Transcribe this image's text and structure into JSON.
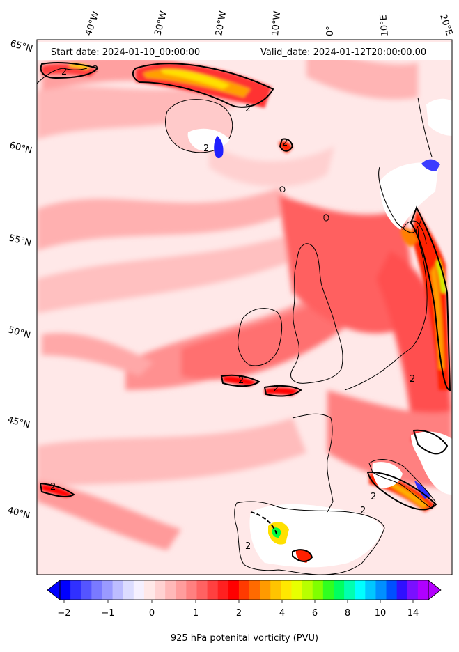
{
  "header": {
    "start_date": "Start date: 2024-01-10_00:00:00",
    "valid_date": "Valid_date: 2024-01-12T20:00:00.00"
  },
  "map": {
    "projection": "polar-stereographic (conic-like)",
    "background_color": "#ffe8e8",
    "longitude_labels": [
      "40°W",
      "30°W",
      "20°W",
      "10°W",
      "0°",
      "10°E",
      "20°E"
    ],
    "latitude_labels": [
      "65°N",
      "60°N",
      "55°N",
      "50°N",
      "45°N",
      "40°N"
    ],
    "contour_label": "2",
    "contour_color": "#000000"
  },
  "colorbar": {
    "label": "925 hPa potenital vorticity (PVU)",
    "tick_labels": [
      "−2",
      "−1",
      "0",
      "1",
      "2",
      "4",
      "6",
      "8",
      "10",
      "14"
    ],
    "colors": [
      "#0000ff",
      "#3030ff",
      "#5555ff",
      "#7a7aff",
      "#9a9aff",
      "#bcbcff",
      "#dcdcff",
      "#f5f0ff",
      "#ffe8e8",
      "#ffd2d2",
      "#ffb8b8",
      "#ff9c9c",
      "#ff8080",
      "#ff6262",
      "#ff4040",
      "#ff2020",
      "#ff0000",
      "#ff3a00",
      "#ff6a00",
      "#ff9a00",
      "#ffc400",
      "#ffe800",
      "#e8ff00",
      "#b8ff00",
      "#80ff00",
      "#30ff20",
      "#00ff60",
      "#00ffb0",
      "#00ffff",
      "#00c8ff",
      "#0090ff",
      "#0050ff",
      "#3010ff",
      "#7a10ff",
      "#b000ff"
    ],
    "extend_low_color": "#0000ff",
    "extend_high_color": "#b400ff"
  }
}
